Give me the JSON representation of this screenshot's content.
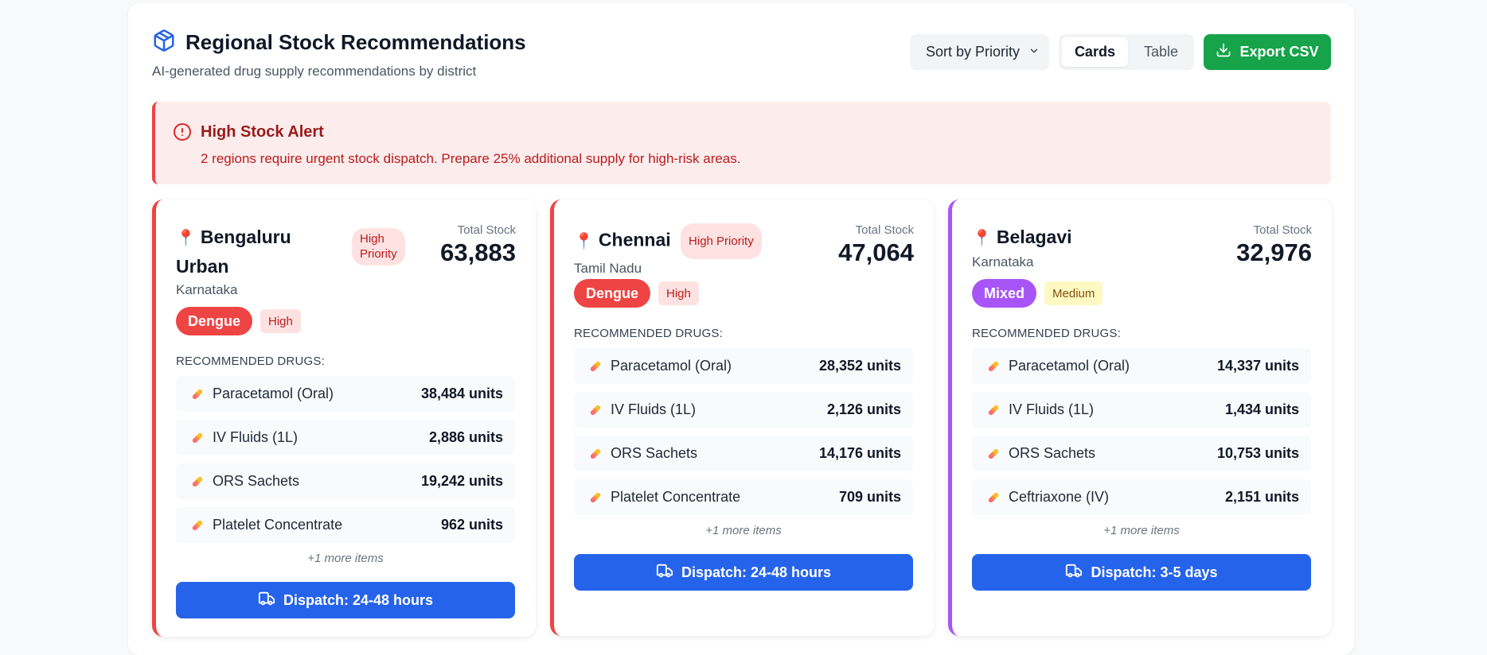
{
  "header": {
    "title": "Regional Stock Recommendations",
    "subtitle": "AI-generated drug supply recommendations by district",
    "sort_label": "Sort by Priority",
    "view_cards": "Cards",
    "view_table": "Table",
    "export_label": "Export CSV",
    "icons": {
      "title": "package-icon",
      "sort": "chevron-down-icon",
      "export": "download-icon"
    }
  },
  "alert": {
    "title": "High Stock Alert",
    "text": "2 regions require urgent stock dispatch. Prepare 25% additional supply for high-risk areas.",
    "icon": "alert-circle-icon"
  },
  "common": {
    "total_stock_label": "Total Stock",
    "recommended_label": "RECOMMENDED DRUGS:",
    "pin_icon": "📍",
    "more_items": "+1 more items"
  },
  "cards": [
    {
      "city_line1": "Bengaluru",
      "city_line2": "Urban",
      "state": "Karnataka",
      "priority": "High Priority",
      "priority_line1": "High",
      "priority_line2": "Priority",
      "total_stock": "63,883",
      "disease": "Dengue",
      "severity": "High",
      "drugs": [
        {
          "name": "Paracetamol (Oral)",
          "units": "38,484 units"
        },
        {
          "name": "IV Fluids (1L)",
          "units": "2,886 units"
        },
        {
          "name": "ORS Sachets",
          "units": "19,242 units"
        },
        {
          "name": "Platelet Concentrate",
          "units": "962 units"
        }
      ],
      "dispatch": "Dispatch: 24-48 hours",
      "accent": "#ef4444"
    },
    {
      "city": "Chennai",
      "state": "Tamil Nadu",
      "priority": "High Priority",
      "total_stock": "47,064",
      "disease": "Dengue",
      "severity": "High",
      "drugs": [
        {
          "name": "Paracetamol (Oral)",
          "units": "28,352 units"
        },
        {
          "name": "IV Fluids (1L)",
          "units": "2,126 units"
        },
        {
          "name": "ORS Sachets",
          "units": "14,176 units"
        },
        {
          "name": "Platelet Concentrate",
          "units": "709 units"
        }
      ],
      "dispatch": "Dispatch: 24-48 hours",
      "accent": "#ef4444"
    },
    {
      "city": "Belagavi",
      "state": "Karnataka",
      "total_stock": "32,976",
      "disease": "Mixed",
      "severity": "Medium",
      "drugs": [
        {
          "name": "Paracetamol (Oral)",
          "units": "14,337 units"
        },
        {
          "name": "IV Fluids (1L)",
          "units": "1,434 units"
        },
        {
          "name": "ORS Sachets",
          "units": "10,753 units"
        },
        {
          "name": "Ceftriaxone (IV)",
          "units": "2,151 units"
        }
      ],
      "dispatch": "Dispatch: 3-5 days",
      "accent": "#a855f7"
    }
  ],
  "colors": {
    "primary_blue": "#2563eb",
    "export_green": "#16a34a",
    "danger_red": "#ef4444",
    "mixed_purple": "#a855f7",
    "alert_bg": "#fdecec"
  }
}
